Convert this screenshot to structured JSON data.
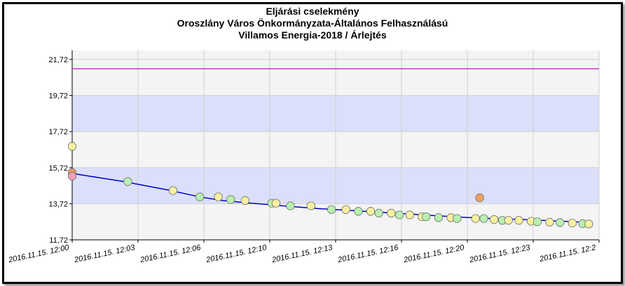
{
  "title_lines": [
    "Eljárási cselekmény",
    "Oroszlány Város Önkormányzata-Általános Felhasználású",
    "Villamos Energia-2018 / Árlejtés"
  ],
  "colors": {
    "band": "#dcdffa",
    "plot_bg": "#f4f4f4",
    "line": "#0000cc",
    "reference": "#cc33cc",
    "marker_green": "#b8f0b0",
    "marker_yellow": "#f8f0a0",
    "marker_orange": "#f0a060",
    "marker_pink": "#f0a0b8"
  },
  "chart_data": {
    "type": "line",
    "title": "Eljárási cselekmény Oroszlány Város Önkormányzata-Általános Felhasználású Villamos Energia-2018 / Árlejtés",
    "xlabel": "",
    "ylabel": "",
    "ylim": [
      11.72,
      22.22
    ],
    "yticks": [
      "21,72",
      "19,72",
      "17,72",
      "15,72",
      "13,72",
      "11,72"
    ],
    "xticks": [
      "2016.11.15. 12:00",
      "2016.11.15. 12:03",
      "2016.11.15. 12:06",
      "2016.11.15. 12:10",
      "2016.11.15. 12:13",
      "2016.11.15. 12:16",
      "2016.11.15. 12:20",
      "2016.11.15. 12:23",
      "2016.11.15. 12:2"
    ],
    "reference_line": 21.2,
    "grid": true,
    "bands": [
      [
        17.72,
        19.72
      ],
      [
        13.72,
        15.72
      ]
    ],
    "line": {
      "x": [
        0,
        2.5,
        4.8,
        6.2,
        7.3,
        8.7,
        10.3,
        12.0,
        14.2,
        16.4,
        18.5,
        20.3,
        21.8,
        24.5,
        25.3
      ],
      "y": [
        15.4,
        14.95,
        14.45,
        14.1,
        13.9,
        13.75,
        13.6,
        13.45,
        13.3,
        13.15,
        13.0,
        12.9,
        12.85,
        12.72,
        12.62
      ]
    },
    "markers": [
      {
        "x": 0,
        "y": 16.9,
        "color": "yellow"
      },
      {
        "x": 0,
        "y": 15.45,
        "color": "orange"
      },
      {
        "x": 0,
        "y": 15.25,
        "color": "pink"
      },
      {
        "x": 2.7,
        "y": 14.95,
        "color": "green"
      },
      {
        "x": 4.9,
        "y": 14.45,
        "color": "yellow"
      },
      {
        "x": 6.2,
        "y": 14.1,
        "color": "green"
      },
      {
        "x": 7.1,
        "y": 14.1,
        "color": "yellow"
      },
      {
        "x": 7.7,
        "y": 13.95,
        "color": "green"
      },
      {
        "x": 8.4,
        "y": 13.9,
        "color": "yellow"
      },
      {
        "x": 9.7,
        "y": 13.75,
        "color": "green"
      },
      {
        "x": 9.9,
        "y": 13.75,
        "color": "yellow"
      },
      {
        "x": 10.6,
        "y": 13.6,
        "color": "green"
      },
      {
        "x": 11.6,
        "y": 13.6,
        "color": "yellow"
      },
      {
        "x": 12.6,
        "y": 13.4,
        "color": "green"
      },
      {
        "x": 13.3,
        "y": 13.4,
        "color": "yellow"
      },
      {
        "x": 13.9,
        "y": 13.3,
        "color": "green"
      },
      {
        "x": 14.5,
        "y": 13.3,
        "color": "yellow"
      },
      {
        "x": 14.9,
        "y": 13.2,
        "color": "green"
      },
      {
        "x": 15.5,
        "y": 13.2,
        "color": "yellow"
      },
      {
        "x": 15.9,
        "y": 13.1,
        "color": "green"
      },
      {
        "x": 16.4,
        "y": 13.1,
        "color": "yellow"
      },
      {
        "x": 17.0,
        "y": 13.0,
        "color": "yellow"
      },
      {
        "x": 17.2,
        "y": 13.0,
        "color": "green"
      },
      {
        "x": 17.8,
        "y": 12.95,
        "color": "green"
      },
      {
        "x": 18.4,
        "y": 12.95,
        "color": "yellow"
      },
      {
        "x": 18.7,
        "y": 12.9,
        "color": "green"
      },
      {
        "x": 19.6,
        "y": 12.9,
        "color": "yellow"
      },
      {
        "x": 19.8,
        "y": 14.05,
        "color": "orange"
      },
      {
        "x": 20.0,
        "y": 12.9,
        "color": "green"
      },
      {
        "x": 20.5,
        "y": 12.85,
        "color": "yellow"
      },
      {
        "x": 20.9,
        "y": 12.8,
        "color": "green"
      },
      {
        "x": 21.2,
        "y": 12.8,
        "color": "yellow"
      },
      {
        "x": 21.7,
        "y": 12.8,
        "color": "yellow"
      },
      {
        "x": 22.3,
        "y": 12.75,
        "color": "yellow"
      },
      {
        "x": 22.6,
        "y": 12.72,
        "color": "green"
      },
      {
        "x": 23.2,
        "y": 12.7,
        "color": "yellow"
      },
      {
        "x": 23.7,
        "y": 12.68,
        "color": "green"
      },
      {
        "x": 24.3,
        "y": 12.65,
        "color": "yellow"
      },
      {
        "x": 24.8,
        "y": 12.62,
        "color": "green"
      },
      {
        "x": 25.1,
        "y": 12.6,
        "color": "yellow"
      }
    ]
  }
}
